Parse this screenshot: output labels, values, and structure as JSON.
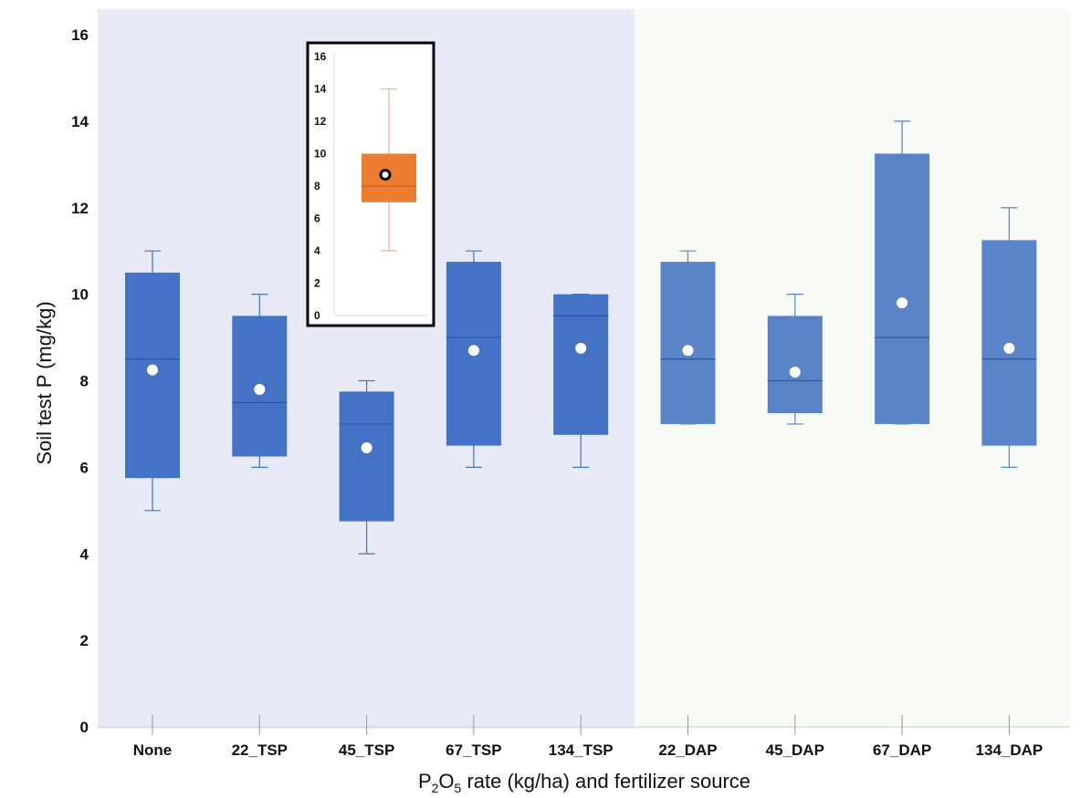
{
  "chart_data": {
    "type": "box",
    "ylabel": "Soil test P (mg/kg)",
    "xlabel_parts": [
      "P",
      "2",
      "O",
      "5",
      " rate (kg/ha) and fertilizer source"
    ],
    "ylim": [
      0,
      16
    ],
    "yticks": [
      0,
      2,
      4,
      6,
      8,
      10,
      12,
      14,
      16
    ],
    "categories": [
      "None",
      "22_TSP",
      "45_TSP",
      "67_TSP",
      "134_TSP",
      "22_DAP",
      "45_DAP",
      "67_DAP",
      "134_DAP"
    ],
    "regions": [
      {
        "from": "None",
        "to": "134_TSP",
        "color": "#e8ebf6"
      },
      {
        "from": "22_DAP",
        "to": "134_DAP",
        "color": "#f8faf5"
      }
    ],
    "boxes": [
      {
        "category": "None",
        "min": 5,
        "q1": 5.75,
        "median": 8.5,
        "q3": 10.5,
        "max": 11,
        "mean": 8.25,
        "color": "#4472c4"
      },
      {
        "category": "22_TSP",
        "min": 6,
        "q1": 6.25,
        "median": 7.5,
        "q3": 9.5,
        "max": 10,
        "mean": 7.8,
        "color": "#4472c4"
      },
      {
        "category": "45_TSP",
        "min": 4,
        "q1": 4.75,
        "median": 7,
        "q3": 7.75,
        "max": 8,
        "mean": 6.45,
        "color": "#4472c4"
      },
      {
        "category": "67_TSP",
        "min": 6,
        "q1": 6.5,
        "median": 9,
        "q3": 10.75,
        "max": 11,
        "mean": 8.7,
        "color": "#4472c4"
      },
      {
        "category": "134_TSP",
        "min": 6,
        "q1": 6.75,
        "median": 9.5,
        "q3": 10,
        "max": 10,
        "mean": 8.75,
        "color": "#4472c4"
      },
      {
        "category": "22_DAP",
        "min": 7,
        "q1": 7,
        "median": 8.5,
        "q3": 10.75,
        "max": 11,
        "mean": 8.7,
        "color": "#5a83c8"
      },
      {
        "category": "45_DAP",
        "min": 7,
        "q1": 7.25,
        "median": 8,
        "q3": 9.5,
        "max": 10,
        "mean": 8.2,
        "color": "#5a83c8"
      },
      {
        "category": "67_DAP",
        "min": 7,
        "q1": 7,
        "median": 9,
        "q3": 13.25,
        "max": 14,
        "mean": 9.8,
        "color": "#5a83c8"
      },
      {
        "category": "134_DAP",
        "min": 6,
        "q1": 6.5,
        "median": 8.5,
        "q3": 11.25,
        "max": 12,
        "mean": 8.75,
        "color": "#5a83c8"
      }
    ],
    "inset": {
      "ylim": [
        0,
        16
      ],
      "yticks": [
        0,
        2,
        4,
        6,
        8,
        10,
        12,
        14,
        16
      ],
      "box": {
        "min": 4,
        "q1": 7,
        "median": 8,
        "q3": 10,
        "max": 14,
        "mean": 8.7,
        "color": "#ed7d31"
      }
    }
  }
}
